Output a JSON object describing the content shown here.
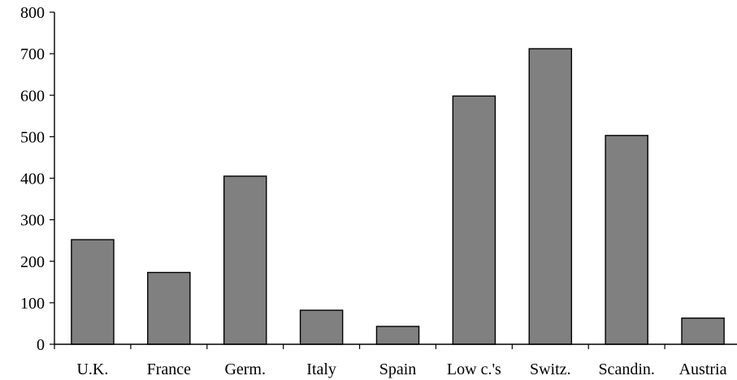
{
  "chart_data": {
    "type": "bar",
    "categories": [
      "U.K.",
      "France",
      "Germ.",
      "Italy",
      "Spain",
      "Low c.'s",
      "Switz.",
      "Scandin.",
      "Austria"
    ],
    "values": [
      252,
      173,
      405,
      82,
      43,
      598,
      712,
      503,
      63
    ],
    "ylim": [
      0,
      800
    ],
    "yticks": [
      "0",
      "100",
      "200",
      "300",
      "400",
      "500",
      "600",
      "700",
      "800"
    ],
    "title": "",
    "xlabel": "",
    "ylabel": "",
    "grid": false,
    "legend": "none"
  },
  "colors": {
    "bar_fill": "#808080",
    "bar_stroke": "#000000",
    "axis": "#000000",
    "background": "#ffffff"
  }
}
